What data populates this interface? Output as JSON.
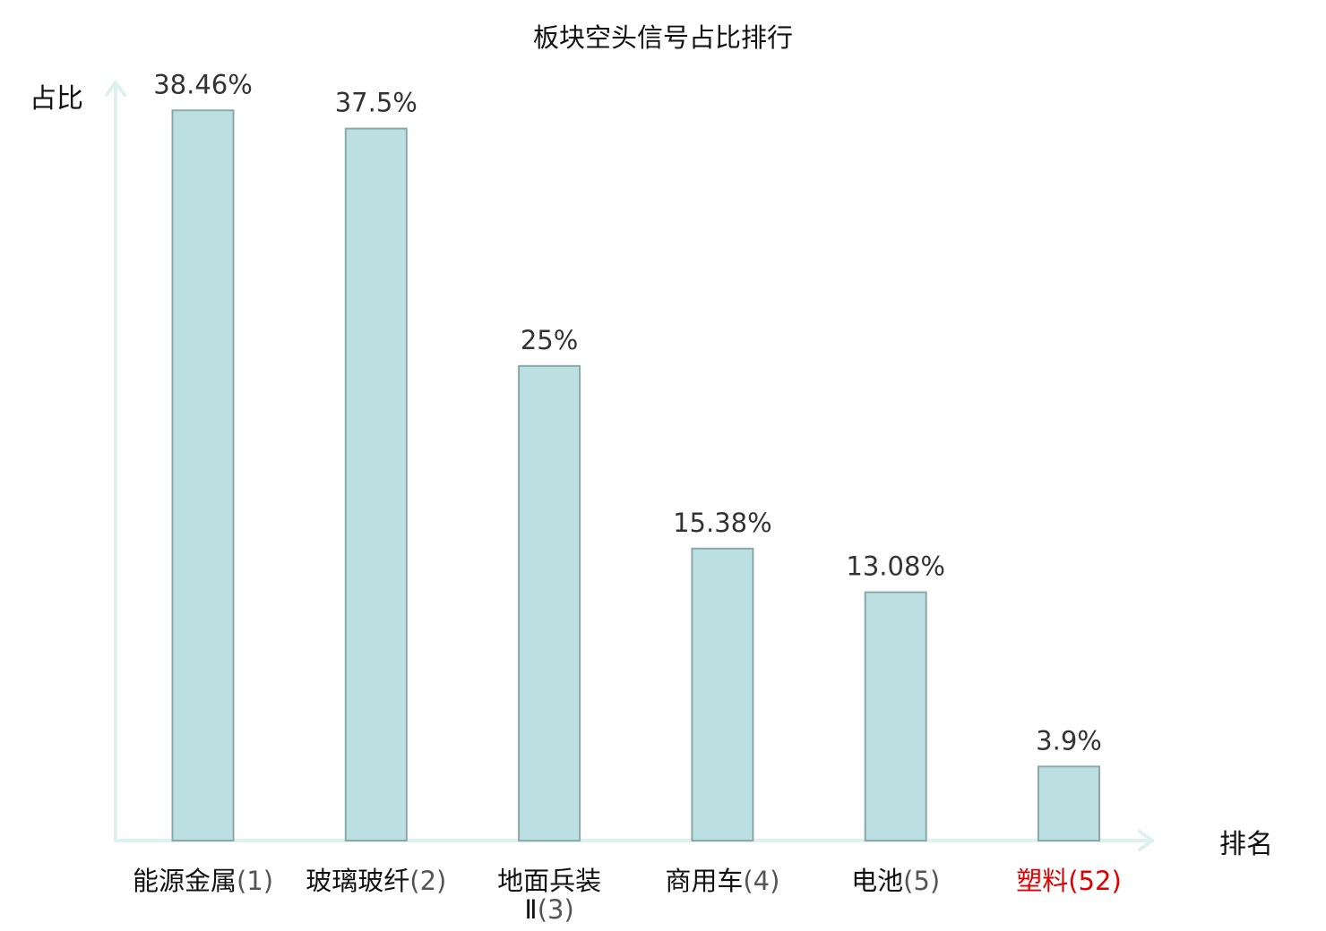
{
  "chart_data": {
    "type": "bar",
    "title": "板块空头信号占比排行",
    "ylabel": "占比",
    "xlabel": "排名",
    "ylim": [
      0,
      40
    ],
    "grid": false,
    "legend": "none",
    "categories": [
      {
        "name_lines": [
          "能源金属"
        ],
        "rank": "(1)",
        "highlight": false
      },
      {
        "name_lines": [
          "玻璃玻纤"
        ],
        "rank": "(2)",
        "highlight": false
      },
      {
        "name_lines": [
          "地面兵装",
          "Ⅱ"
        ],
        "rank": "(3)",
        "highlight": false
      },
      {
        "name_lines": [
          "商用车"
        ],
        "rank": "(4)",
        "highlight": false
      },
      {
        "name_lines": [
          "电池"
        ],
        "rank": "(5)",
        "highlight": false
      },
      {
        "name_lines": [
          "塑料"
        ],
        "rank": "(52)",
        "highlight": true
      }
    ],
    "values": [
      38.46,
      37.5,
      25,
      15.38,
      13.08,
      3.9
    ],
    "value_labels": [
      "38.46%",
      "37.5%",
      "25%",
      "15.38%",
      "13.08%",
      "3.9%"
    ]
  },
  "colors": {
    "bar_fill": "#bce0e2",
    "bar_stroke": "#8aa8a9",
    "axis": "#ddf1ee",
    "text": "#111111",
    "rank_text": "#555555",
    "highlight": "#e00000"
  }
}
